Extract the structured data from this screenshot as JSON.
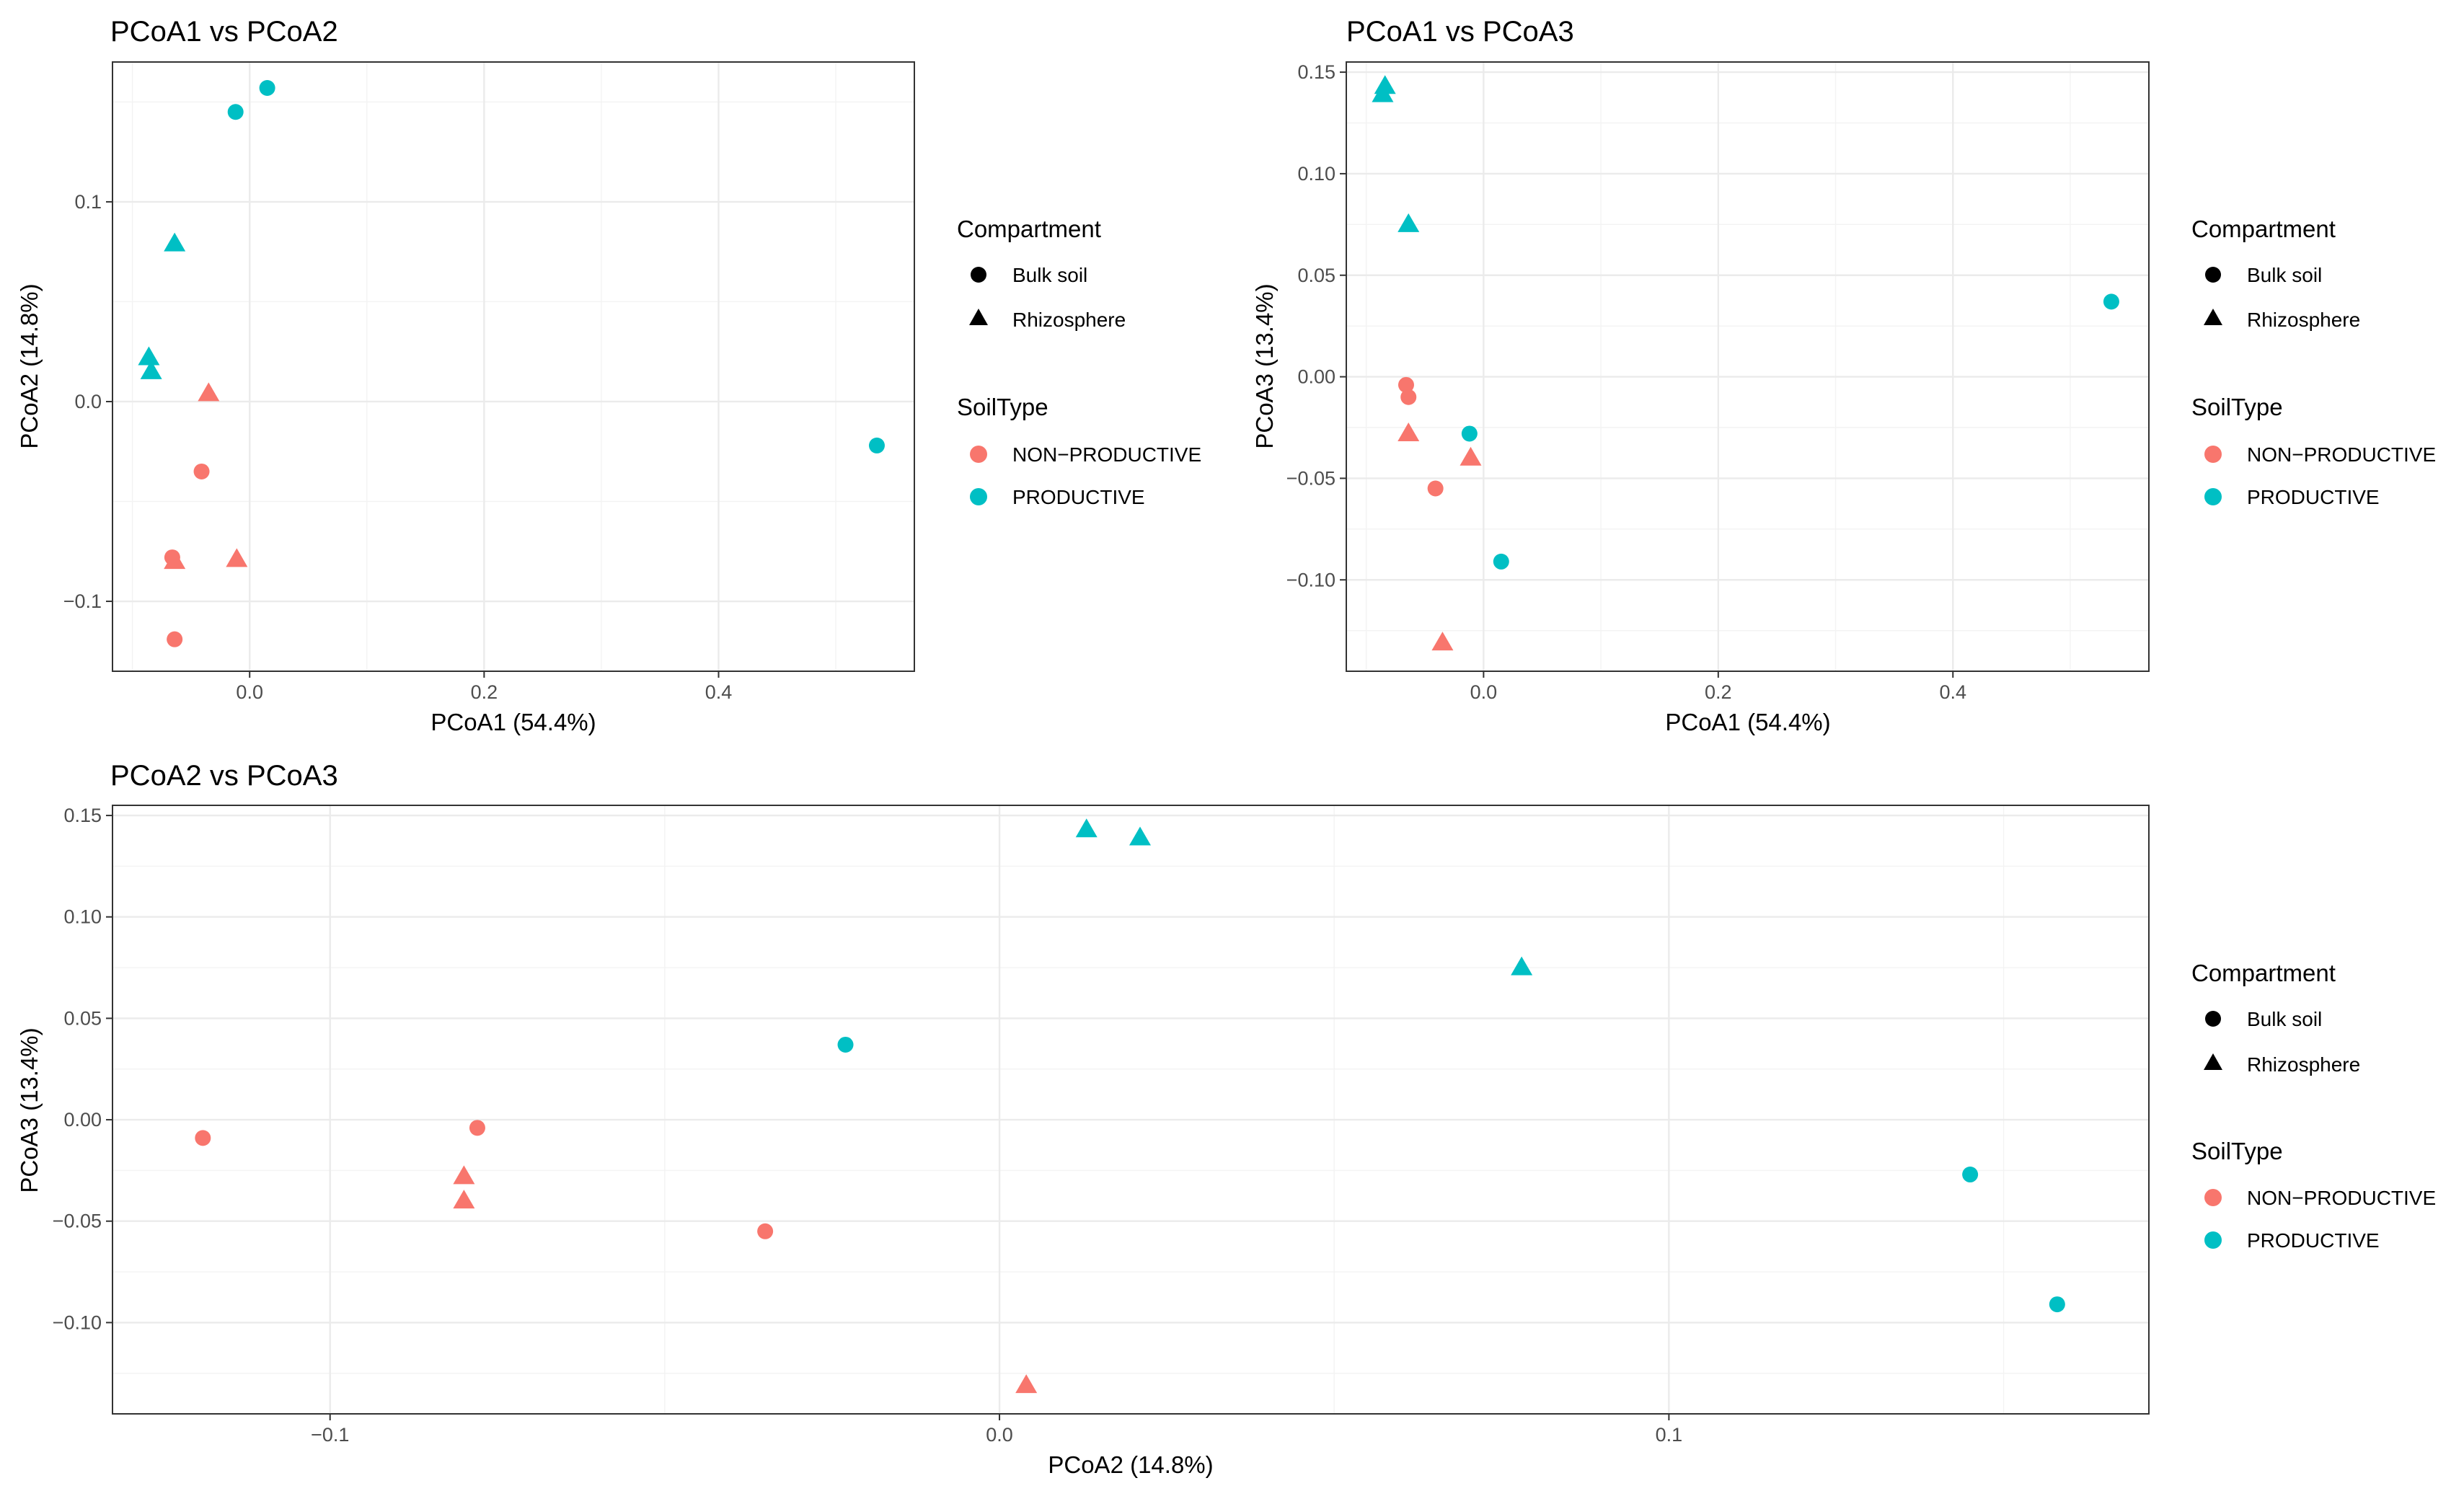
{
  "colors": {
    "NON-PRODUCTIVE": "#F8766D",
    "PRODUCTIVE": "#00BFC4",
    "legend_shape": "#000000"
  },
  "legend": {
    "compartment_title": "Compartment",
    "compartment_items": [
      {
        "label": "Bulk soil",
        "shape": "circle"
      },
      {
        "label": "Rhizosphere",
        "shape": "triangle"
      }
    ],
    "soiltype_title": "SoilType",
    "soiltype_items": [
      {
        "label": "NON−PRODUCTIVE",
        "key": "NON-PRODUCTIVE"
      },
      {
        "label": "PRODUCTIVE",
        "key": "PRODUCTIVE"
      }
    ]
  },
  "chart_data": [
    {
      "type": "scatter",
      "title": "PCoA1 vs PCoA2",
      "xlabel": "PCoA1 (54.4%)",
      "ylabel": "PCoA2 (14.8%)",
      "xlim": [
        -0.117,
        0.567
      ],
      "ylim": [
        -0.135,
        0.17
      ],
      "xticks": [
        {
          "v": 0.0,
          "label": "0.0"
        },
        {
          "v": 0.2,
          "label": "0.2"
        },
        {
          "v": 0.4,
          "label": "0.4"
        }
      ],
      "yticks": [
        {
          "v": -0.1,
          "label": "−0.1"
        },
        {
          "v": 0.0,
          "label": "0.0"
        },
        {
          "v": 0.1,
          "label": "0.1"
        }
      ],
      "points": [
        {
          "x": 0.015,
          "y": 0.157,
          "compartment": "Bulk soil",
          "soil": "PRODUCTIVE"
        },
        {
          "x": -0.012,
          "y": 0.145,
          "compartment": "Bulk soil",
          "soil": "PRODUCTIVE"
        },
        {
          "x": 0.535,
          "y": -0.022,
          "compartment": "Bulk soil",
          "soil": "PRODUCTIVE"
        },
        {
          "x": -0.064,
          "y": 0.079,
          "compartment": "Rhizosphere",
          "soil": "PRODUCTIVE"
        },
        {
          "x": -0.086,
          "y": 0.022,
          "compartment": "Rhizosphere",
          "soil": "PRODUCTIVE"
        },
        {
          "x": -0.084,
          "y": 0.015,
          "compartment": "Rhizosphere",
          "soil": "PRODUCTIVE"
        },
        {
          "x": -0.035,
          "y": 0.004,
          "compartment": "Rhizosphere",
          "soil": "NON-PRODUCTIVE"
        },
        {
          "x": -0.041,
          "y": -0.035,
          "compartment": "Bulk soil",
          "soil": "NON-PRODUCTIVE"
        },
        {
          "x": -0.066,
          "y": -0.078,
          "compartment": "Bulk soil",
          "soil": "NON-PRODUCTIVE"
        },
        {
          "x": -0.064,
          "y": -0.08,
          "compartment": "Rhizosphere",
          "soil": "NON-PRODUCTIVE"
        },
        {
          "x": -0.011,
          "y": -0.079,
          "compartment": "Rhizosphere",
          "soil": "NON-PRODUCTIVE"
        },
        {
          "x": -0.064,
          "y": -0.119,
          "compartment": "Bulk soil",
          "soil": "NON-PRODUCTIVE"
        }
      ]
    },
    {
      "type": "scatter",
      "title": "PCoA1 vs PCoA3",
      "xlabel": "PCoA1 (54.4%)",
      "ylabel": "PCoA3 (13.4%)",
      "xlim": [
        -0.117,
        0.567
      ],
      "ylim": [
        -0.145,
        0.155
      ],
      "xticks": [
        {
          "v": 0.0,
          "label": "0.0"
        },
        {
          "v": 0.2,
          "label": "0.2"
        },
        {
          "v": 0.4,
          "label": "0.4"
        }
      ],
      "yticks": [
        {
          "v": -0.1,
          "label": "−0.10"
        },
        {
          "v": -0.05,
          "label": "−0.05"
        },
        {
          "v": 0.0,
          "label": "0.00"
        },
        {
          "v": 0.05,
          "label": "0.05"
        },
        {
          "v": 0.1,
          "label": "0.10"
        },
        {
          "v": 0.15,
          "label": "0.15"
        }
      ],
      "points": [
        {
          "x": -0.084,
          "y": 0.143,
          "compartment": "Rhizosphere",
          "soil": "PRODUCTIVE"
        },
        {
          "x": -0.086,
          "y": 0.139,
          "compartment": "Rhizosphere",
          "soil": "PRODUCTIVE"
        },
        {
          "x": -0.064,
          "y": 0.075,
          "compartment": "Rhizosphere",
          "soil": "PRODUCTIVE"
        },
        {
          "x": 0.535,
          "y": 0.037,
          "compartment": "Bulk soil",
          "soil": "PRODUCTIVE"
        },
        {
          "x": -0.012,
          "y": -0.028,
          "compartment": "Bulk soil",
          "soil": "PRODUCTIVE"
        },
        {
          "x": 0.015,
          "y": -0.091,
          "compartment": "Bulk soil",
          "soil": "PRODUCTIVE"
        },
        {
          "x": -0.066,
          "y": -0.004,
          "compartment": "Bulk soil",
          "soil": "NON-PRODUCTIVE"
        },
        {
          "x": -0.064,
          "y": -0.01,
          "compartment": "Bulk soil",
          "soil": "NON-PRODUCTIVE"
        },
        {
          "x": -0.064,
          "y": -0.028,
          "compartment": "Rhizosphere",
          "soil": "NON-PRODUCTIVE"
        },
        {
          "x": -0.011,
          "y": -0.04,
          "compartment": "Rhizosphere",
          "soil": "NON-PRODUCTIVE"
        },
        {
          "x": -0.041,
          "y": -0.055,
          "compartment": "Bulk soil",
          "soil": "NON-PRODUCTIVE"
        },
        {
          "x": -0.035,
          "y": -0.131,
          "compartment": "Rhizosphere",
          "soil": "NON-PRODUCTIVE"
        }
      ]
    },
    {
      "type": "scatter",
      "title": "PCoA2 vs PCoA3",
      "xlabel": "PCoA2 (14.8%)",
      "ylabel": "PCoA3 (13.4%)",
      "xlim": [
        -0.1325,
        0.1717
      ],
      "ylim": [
        -0.145,
        0.155
      ],
      "xticks": [
        {
          "v": -0.1,
          "label": "−0.1"
        },
        {
          "v": 0.0,
          "label": "0.0"
        },
        {
          "v": 0.1,
          "label": "0.1"
        }
      ],
      "yticks": [
        {
          "v": -0.1,
          "label": "−0.10"
        },
        {
          "v": -0.05,
          "label": "−0.05"
        },
        {
          "v": 0.0,
          "label": "0.00"
        },
        {
          "v": 0.05,
          "label": "0.05"
        },
        {
          "v": 0.1,
          "label": "0.10"
        },
        {
          "v": 0.15,
          "label": "0.15"
        }
      ],
      "points": [
        {
          "x": 0.013,
          "y": 0.143,
          "compartment": "Rhizosphere",
          "soil": "PRODUCTIVE"
        },
        {
          "x": 0.021,
          "y": 0.139,
          "compartment": "Rhizosphere",
          "soil": "PRODUCTIVE"
        },
        {
          "x": 0.078,
          "y": 0.075,
          "compartment": "Rhizosphere",
          "soil": "PRODUCTIVE"
        },
        {
          "x": -0.023,
          "y": 0.037,
          "compartment": "Bulk soil",
          "soil": "PRODUCTIVE"
        },
        {
          "x": 0.145,
          "y": -0.027,
          "compartment": "Bulk soil",
          "soil": "PRODUCTIVE"
        },
        {
          "x": 0.158,
          "y": -0.091,
          "compartment": "Bulk soil",
          "soil": "PRODUCTIVE"
        },
        {
          "x": -0.119,
          "y": -0.009,
          "compartment": "Bulk soil",
          "soil": "NON-PRODUCTIVE"
        },
        {
          "x": -0.078,
          "y": -0.004,
          "compartment": "Bulk soil",
          "soil": "NON-PRODUCTIVE"
        },
        {
          "x": -0.08,
          "y": -0.028,
          "compartment": "Rhizosphere",
          "soil": "NON-PRODUCTIVE"
        },
        {
          "x": -0.08,
          "y": -0.04,
          "compartment": "Rhizosphere",
          "soil": "NON-PRODUCTIVE"
        },
        {
          "x": -0.035,
          "y": -0.055,
          "compartment": "Bulk soil",
          "soil": "NON-PRODUCTIVE"
        },
        {
          "x": 0.004,
          "y": -0.131,
          "compartment": "Rhizosphere",
          "soil": "NON-PRODUCTIVE"
        }
      ]
    }
  ]
}
